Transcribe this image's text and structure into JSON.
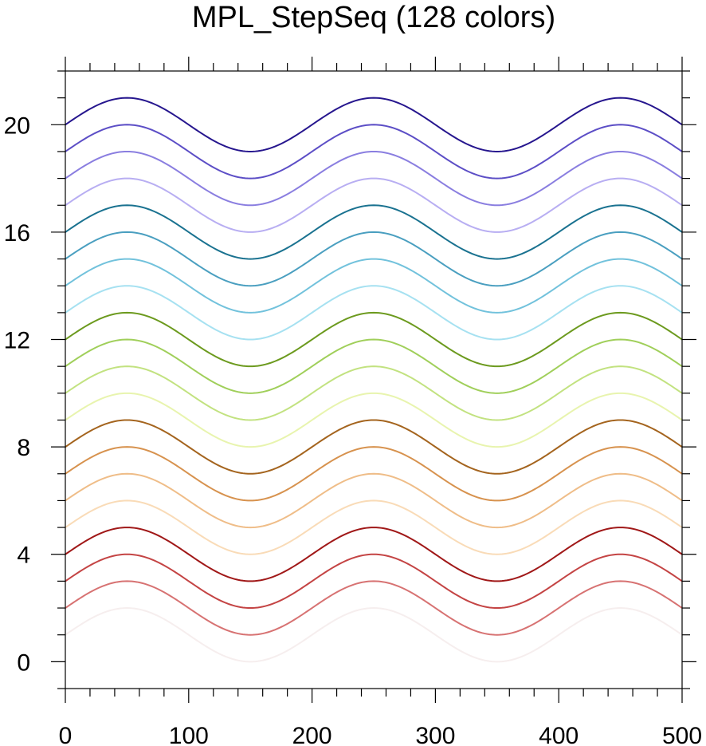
{
  "chart_data": {
    "type": "line",
    "title": "MPL_StepSeq (128 colors)",
    "xlabel": "",
    "ylabel": "",
    "xlim": [
      0,
      500
    ],
    "ylim": [
      -1,
      22
    ],
    "x_ticks": [
      0,
      100,
      200,
      300,
      400,
      500
    ],
    "x_tick_labels": [
      "0",
      "100",
      "200",
      "300",
      "400",
      "500"
    ],
    "y_ticks": [
      0,
      4,
      8,
      12,
      16,
      20
    ],
    "y_tick_labels": [
      "0",
      "4",
      "8",
      "12",
      "16",
      "20"
    ],
    "x_minor_step": 20,
    "y_minor_step": 1,
    "curve": {
      "shape": "sine",
      "amplitude": 1,
      "period": 200,
      "peak_at_x": 50,
      "x_start": 0,
      "x_end": 500
    },
    "grid": false,
    "legend": false,
    "series": [
      {
        "offset": 1,
        "color": "#f6eeee"
      },
      {
        "offset": 2,
        "color": "#d77272"
      },
      {
        "offset": 3,
        "color": "#c44444"
      },
      {
        "offset": 4,
        "color": "#a01818"
      },
      {
        "offset": 5,
        "color": "#f9dbb7"
      },
      {
        "offset": 6,
        "color": "#efbd88"
      },
      {
        "offset": 7,
        "color": "#d7924e"
      },
      {
        "offset": 8,
        "color": "#a4641e"
      },
      {
        "offset": 9,
        "color": "#e8f4ae"
      },
      {
        "offset": 10,
        "color": "#c2e280"
      },
      {
        "offset": 11,
        "color": "#a0cf5a"
      },
      {
        "offset": 12,
        "color": "#6c9a1e"
      },
      {
        "offset": 13,
        "color": "#a6e1f1"
      },
      {
        "offset": 14,
        "color": "#72c2dc"
      },
      {
        "offset": 15,
        "color": "#4a9fc0"
      },
      {
        "offset": 16,
        "color": "#1a7290"
      },
      {
        "offset": 17,
        "color": "#b8aef2"
      },
      {
        "offset": 18,
        "color": "#8a7ee0"
      },
      {
        "offset": 19,
        "color": "#5c4ec6"
      },
      {
        "offset": 20,
        "color": "#26168e"
      }
    ]
  }
}
